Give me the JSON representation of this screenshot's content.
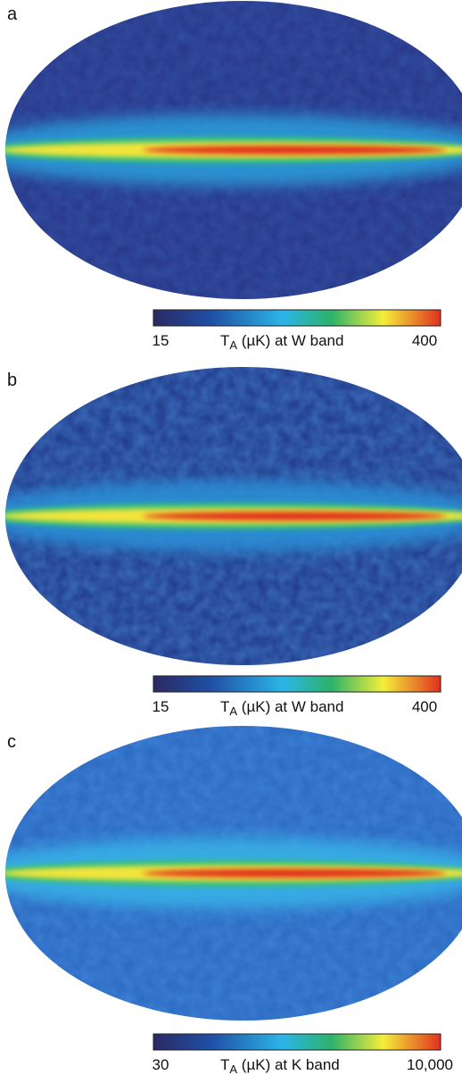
{
  "panels": [
    {
      "label": "a",
      "colorbar": {
        "min": "15",
        "max": "400",
        "symbol": "T",
        "subscript": "A",
        "caption": " (µK) at W band"
      }
    },
    {
      "label": "b",
      "colorbar": {
        "min": "15",
        "max": "400",
        "symbol": "T",
        "subscript": "A",
        "caption": " (µK) at W band"
      }
    },
    {
      "label": "c",
      "colorbar": {
        "min": "30",
        "max": "10,000",
        "symbol": "T",
        "subscript": "A",
        "caption": " (µK) at K band"
      }
    }
  ]
}
